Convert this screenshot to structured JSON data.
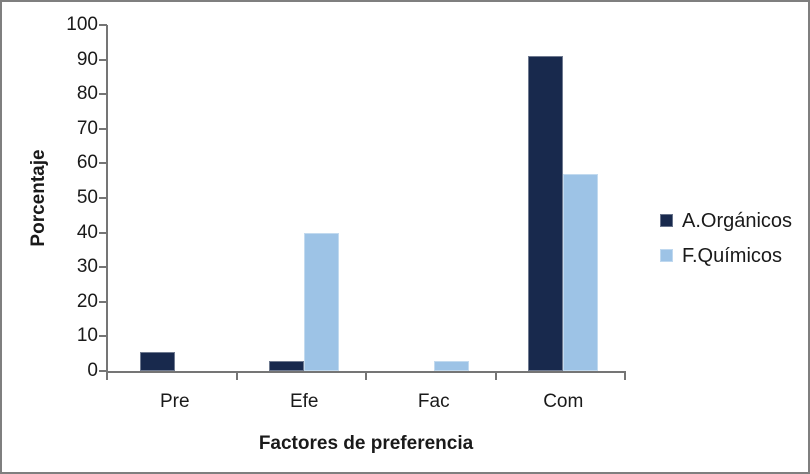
{
  "chart_data": {
    "type": "bar",
    "title": "",
    "xlabel": "Factores de preferencia",
    "ylabel": "Porcentaje",
    "categories": [
      "Pre",
      "Efe",
      "Fac",
      "Com"
    ],
    "series": [
      {
        "name": "A.Orgánicos",
        "color": "#18294D",
        "values": [
          5.5,
          3,
          0,
          91
        ]
      },
      {
        "name": "F.Químicos",
        "color": "#9DC3E6",
        "values": [
          0,
          40,
          3,
          57
        ]
      }
    ],
    "ylim": [
      0,
      100
    ],
    "yticks": [
      0,
      10,
      20,
      30,
      40,
      50,
      60,
      70,
      80,
      90,
      100
    ],
    "grid": false,
    "legend_position": "right",
    "axis_color": "#757575",
    "text_color": "#1A1A1A",
    "frame_border_color": "#7F7F7F",
    "background": "#FFFFFF"
  }
}
